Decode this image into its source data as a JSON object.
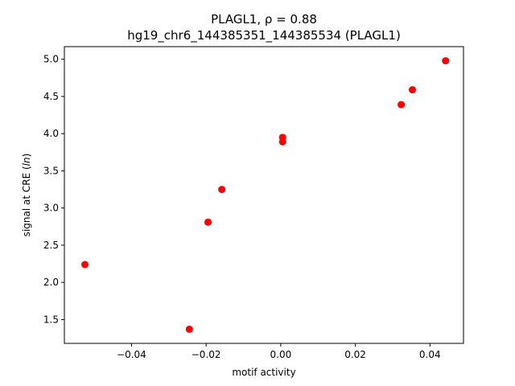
{
  "chart_data": {
    "type": "scatter",
    "title_line1": "PLAGL1, ρ = 0.88",
    "title_line2": "hg19_chr6_144385351_144385534 (PLAGL1)",
    "xlabel": "motif activity",
    "ylabel": "signal at CRE (ln)",
    "xlim": [
      -0.058,
      0.049
    ],
    "ylim": [
      1.18,
      5.17
    ],
    "x_ticks": [
      -0.04,
      -0.02,
      0.0,
      0.02,
      0.04
    ],
    "x_tick_labels": [
      "−0.04",
      "−0.02",
      "0.00",
      "0.02",
      "0.04"
    ],
    "y_ticks": [
      1.5,
      2.0,
      2.5,
      3.0,
      3.5,
      4.0,
      4.5,
      5.0
    ],
    "y_tick_labels": [
      "1.5",
      "2.0",
      "2.5",
      "3.0",
      "3.5",
      "4.0",
      "4.5",
      "5.0"
    ],
    "grid": false,
    "marker_color": "#ff0000",
    "points": [
      {
        "x": -0.0525,
        "y": 2.24
      },
      {
        "x": -0.0245,
        "y": 1.37
      },
      {
        "x": -0.0195,
        "y": 2.81
      },
      {
        "x": -0.0158,
        "y": 3.25
      },
      {
        "x": 0.0005,
        "y": 3.95
      },
      {
        "x": 0.0005,
        "y": 3.89
      },
      {
        "x": 0.0323,
        "y": 4.39
      },
      {
        "x": 0.0353,
        "y": 4.59
      },
      {
        "x": 0.0442,
        "y": 4.98
      }
    ]
  }
}
